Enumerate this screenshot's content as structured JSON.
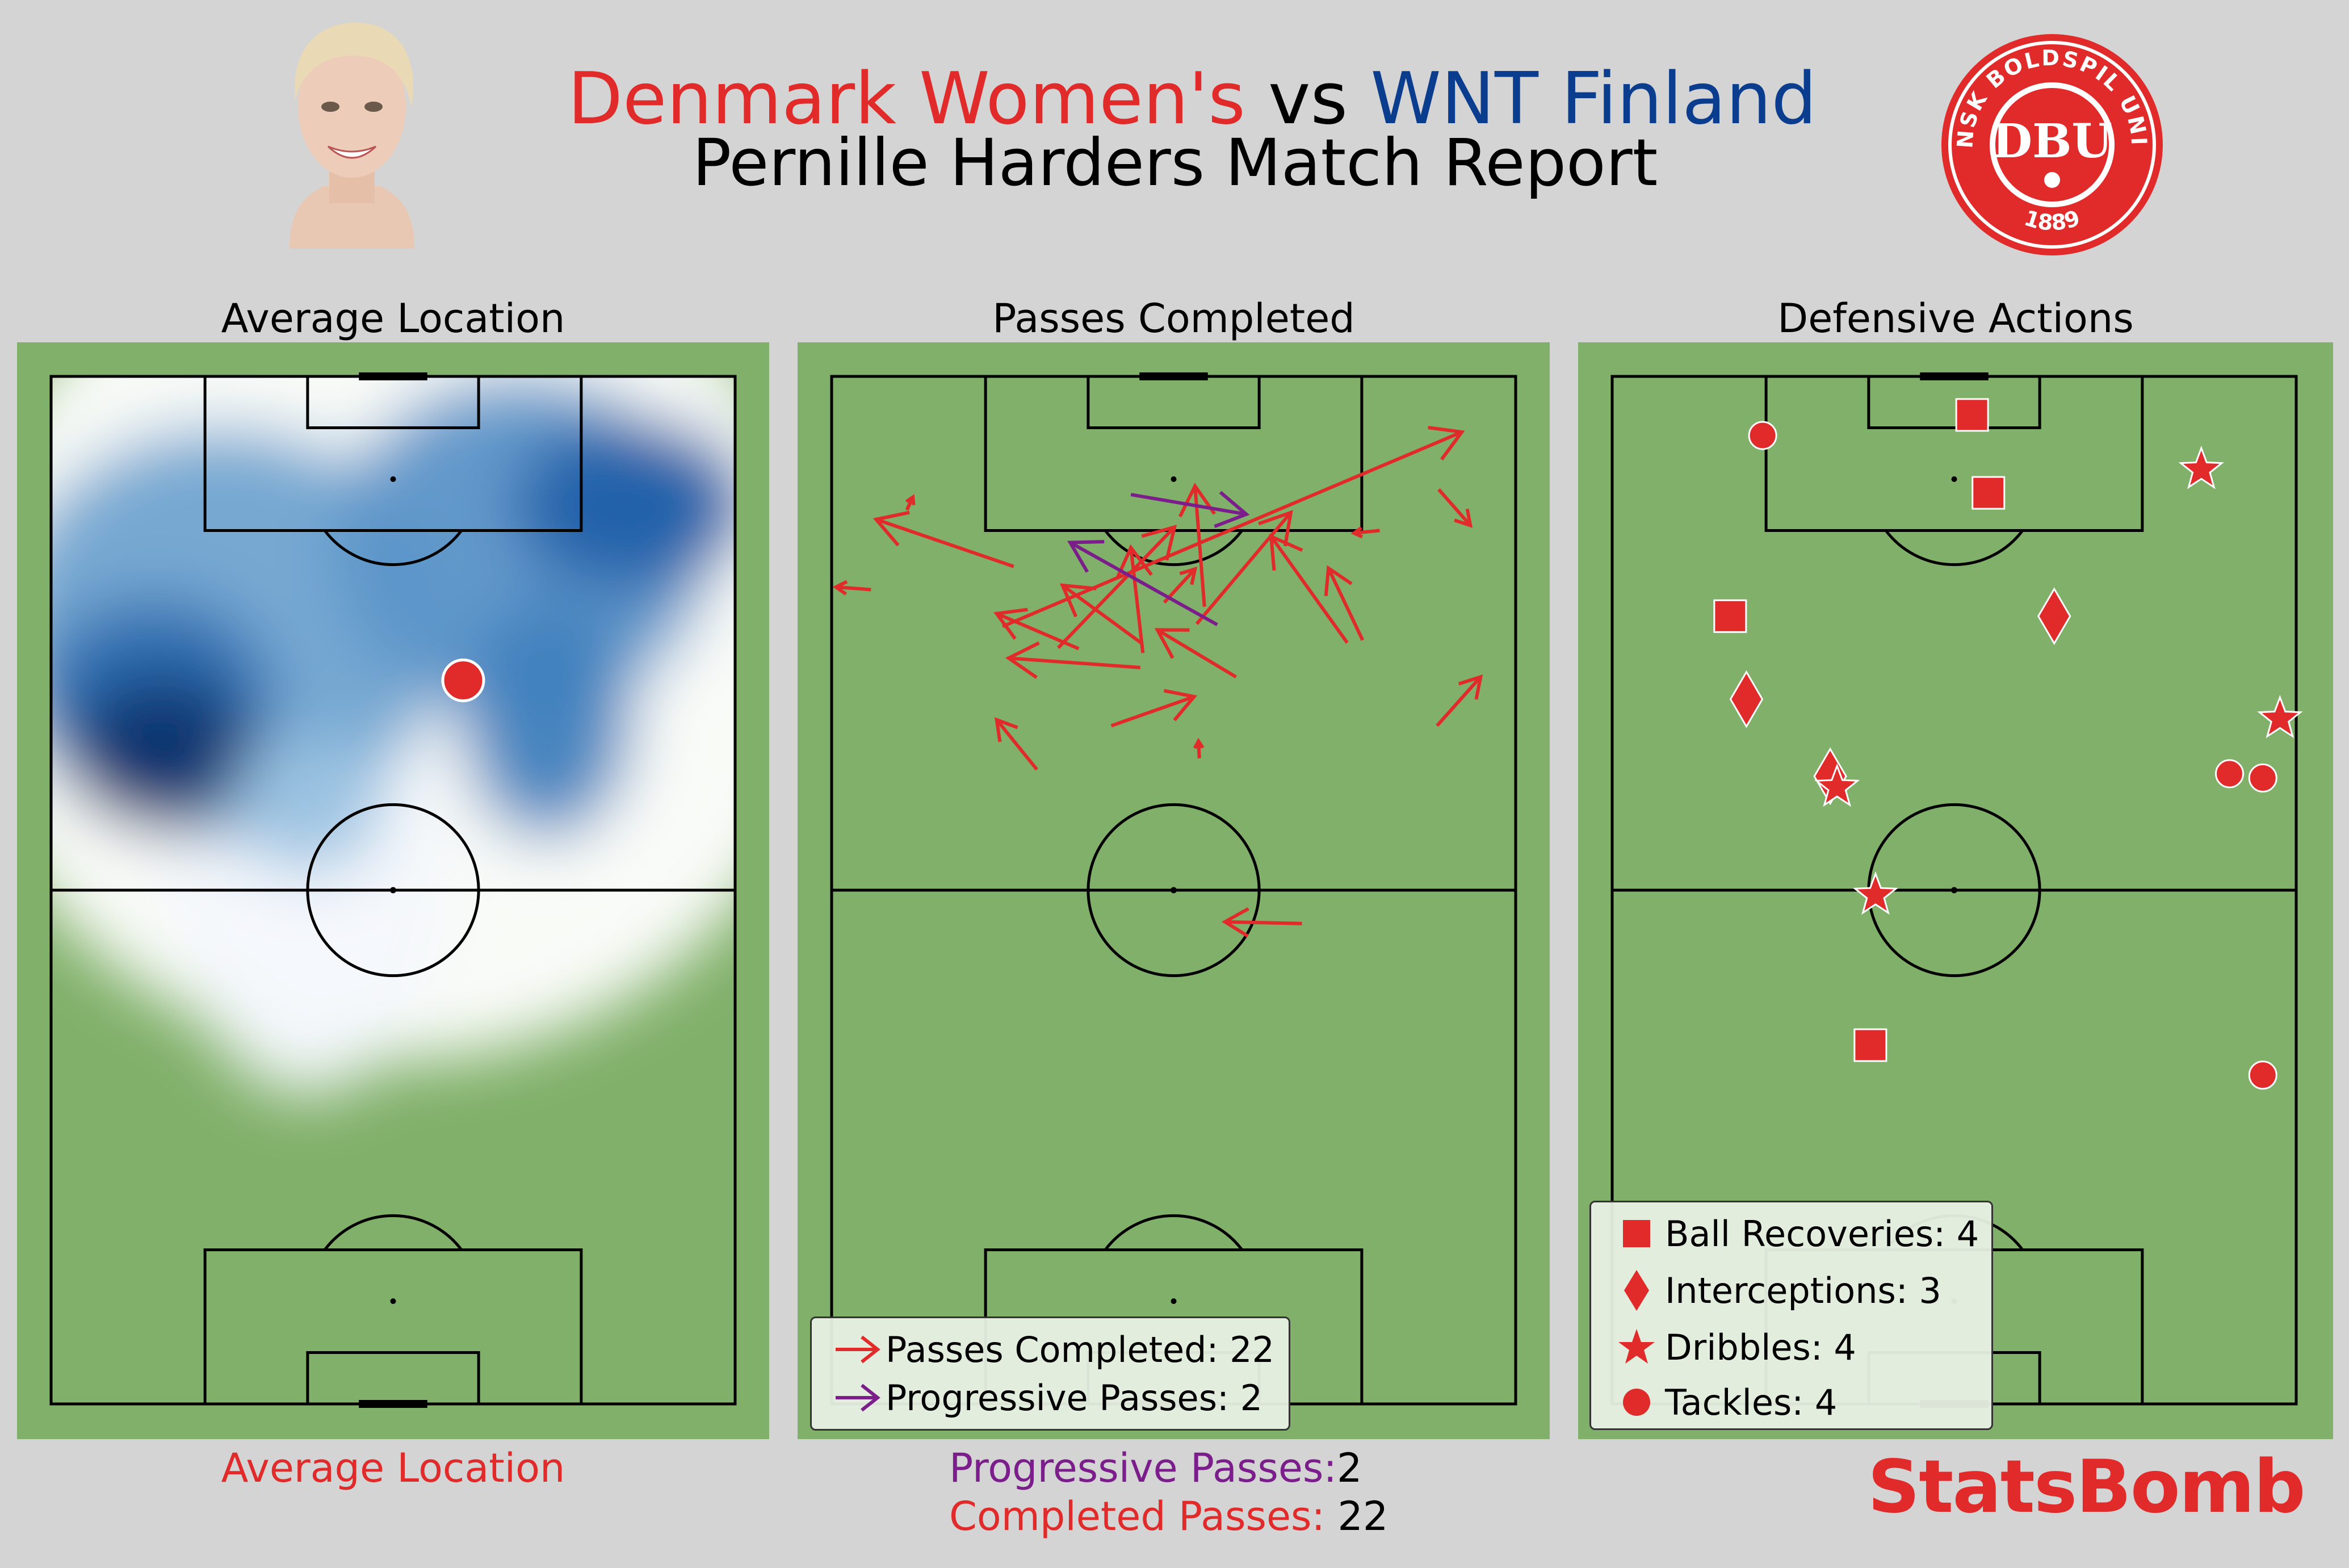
{
  "header": {
    "home_team": "Denmark Women's",
    "vs": "vs",
    "away_team": "WNT Finland",
    "subtitle": "Pernille Harders Match Report",
    "colors": {
      "home": "#e12a2a",
      "away": "#0b3d8f"
    },
    "crest": {
      "top_text": "BOLDSPIL",
      "left_text": "DANSK",
      "right_text": "UNION",
      "year": "1889",
      "center": "DBU"
    }
  },
  "panels": {
    "average_location": {
      "title": "Average Location",
      "footer": "Average Location"
    },
    "passes": {
      "title": "Passes Completed",
      "footer_progressive_label": "Progressive Passes:",
      "footer_progressive_value": "2",
      "footer_completed_label": "Completed Passes: ",
      "footer_completed_value": "22",
      "legend": {
        "completed": "Passes Completed: 22",
        "progressive": "Progressive Passes: 2"
      }
    },
    "defensive": {
      "title": "Defensive Actions",
      "legend": {
        "recoveries": "Ball Recoveries: 4",
        "interceptions": "Interceptions: 3",
        "dribbles": "Dribbles: 4",
        "tackles": "Tackles: 4"
      }
    }
  },
  "brand": "StatsBomb",
  "chart_data": [
    {
      "type": "scatter",
      "title": "Average Location",
      "pitch": {
        "length": 120,
        "width": 80,
        "orientation": "vertical",
        "attack_direction": "up"
      },
      "heatmap": "kde",
      "average_location": {
        "x": 84.5,
        "y": 48.2
      },
      "colors": {
        "pitch": "#80b069",
        "marker": "#e12a2a",
        "heatmap": "Blues"
      }
    },
    {
      "type": "scatter",
      "title": "Passes Completed",
      "pitch": {
        "length": 120,
        "width": 80,
        "orientation": "vertical",
        "attack_direction": "up"
      },
      "passes": [
        {
          "sx": 79.2,
          "sy": 70.8,
          "ex": 84.9,
          "ey": 75.9,
          "progressive": false
        },
        {
          "sx": 89.2,
          "sy": 62.1,
          "ex": 97.6,
          "ey": 58.1,
          "progressive": false
        },
        {
          "sx": 95.1,
          "sy": 4.6,
          "ex": 95.4,
          "ey": 0.5,
          "progressive": false
        },
        {
          "sx": 91.1,
          "sy": 42.7,
          "ex": 104.1,
          "ey": 53.7,
          "progressive": false
        },
        {
          "sx": 84.9,
          "sy": 47.3,
          "ex": 90.4,
          "ey": 38.1,
          "progressive": false
        },
        {
          "sx": 88.2,
          "sy": 28.9,
          "ex": 92.3,
          "ey": 19.3,
          "progressive": false
        },
        {
          "sx": 88.8,
          "sy": 36.3,
          "ex": 95.6,
          "ey": 27.0,
          "progressive": false
        },
        {
          "sx": 93.6,
          "sy": 38.9,
          "ex": 97.5,
          "ey": 42.5,
          "progressive": false
        },
        {
          "sx": 102.0,
          "sy": 64.1,
          "ex": 101.7,
          "ey": 61.1,
          "progressive": false
        },
        {
          "sx": 106.8,
          "sy": 71.0,
          "ex": 102.6,
          "ey": 74.7,
          "progressive": false
        },
        {
          "sx": 86.0,
          "sy": 36.1,
          "ex": 87.1,
          "ey": 20.7,
          "progressive": false
        },
        {
          "sx": 87.7,
          "sy": 36.4,
          "ex": 100.0,
          "ey": 35.0,
          "progressive": false
        },
        {
          "sx": 88.3,
          "sy": 26.5,
          "ex": 102.4,
          "ey": 40.1,
          "progressive": false
        },
        {
          "sx": 88.9,
          "sy": 60.3,
          "ex": 101.3,
          "ey": 51.4,
          "progressive": false
        },
        {
          "sx": 104.4,
          "sy": 8.8,
          "ex": 105.9,
          "ey": 9.5,
          "progressive": false
        },
        {
          "sx": 97.8,
          "sy": 21.3,
          "ex": 103.3,
          "ey": 5.2,
          "progressive": false
        },
        {
          "sx": 79.2,
          "sy": 32.7,
          "ex": 82.6,
          "ey": 42.4,
          "progressive": false
        },
        {
          "sx": 90.8,
          "sy": 20.0,
          "ex": 113.5,
          "ey": 73.7,
          "progressive": false
        },
        {
          "sx": 75.4,
          "sy": 43.0,
          "ex": 77.4,
          "ey": 42.9,
          "progressive": false
        },
        {
          "sx": 74.1,
          "sy": 24.0,
          "ex": 79.9,
          "ey": 19.3,
          "progressive": false
        },
        {
          "sx": 93.1,
          "sy": 43.6,
          "ex": 107.2,
          "ey": 42.5,
          "progressive": false
        },
        {
          "sx": 56.1,
          "sy": 55.0,
          "ex": 56.3,
          "ey": 46.0,
          "progressive": false
        },
        {
          "sx": 106.2,
          "sy": 35.0,
          "ex": 103.9,
          "ey": 48.5,
          "progressive": true
        },
        {
          "sx": 91.0,
          "sy": 45.1,
          "ex": 100.6,
          "ey": 27.9,
          "progressive": true
        }
      ],
      "colors": {
        "completed": "#e12a2a",
        "progressive": "#7b1e8c"
      }
    },
    {
      "type": "scatter",
      "title": "Defensive Actions",
      "pitch": {
        "length": 120,
        "width": 80,
        "orientation": "vertical",
        "attack_direction": "up"
      },
      "series": [
        {
          "name": "Ball Recoveries",
          "marker": "square",
          "points": [
            {
              "x": 115.5,
              "y": 42.1
            },
            {
              "x": 106.4,
              "y": 44.0
            },
            {
              "x": 92.0,
              "y": 13.8
            },
            {
              "x": 41.9,
              "y": 30.2
            }
          ]
        },
        {
          "name": "Interceptions",
          "marker": "diamond",
          "points": [
            {
              "x": 92.0,
              "y": 51.7
            },
            {
              "x": 82.3,
              "y": 15.7
            },
            {
              "x": 73.3,
              "y": 25.5
            }
          ]
        },
        {
          "name": "Dribbles",
          "marker": "star",
          "points": [
            {
              "x": 109.1,
              "y": 68.9
            },
            {
              "x": 80.0,
              "y": 78.1
            },
            {
              "x": 72.0,
              "y": 26.3
            },
            {
              "x": 59.4,
              "y": 30.8
            }
          ]
        },
        {
          "name": "Tackles",
          "marker": "circle",
          "points": [
            {
              "x": 113.1,
              "y": 17.6
            },
            {
              "x": 73.1,
              "y": 76.1
            },
            {
              "x": 73.6,
              "y": 72.2
            },
            {
              "x": 38.4,
              "y": 76.1
            }
          ]
        }
      ],
      "colors": {
        "marker": "#e12a2a"
      }
    }
  ]
}
